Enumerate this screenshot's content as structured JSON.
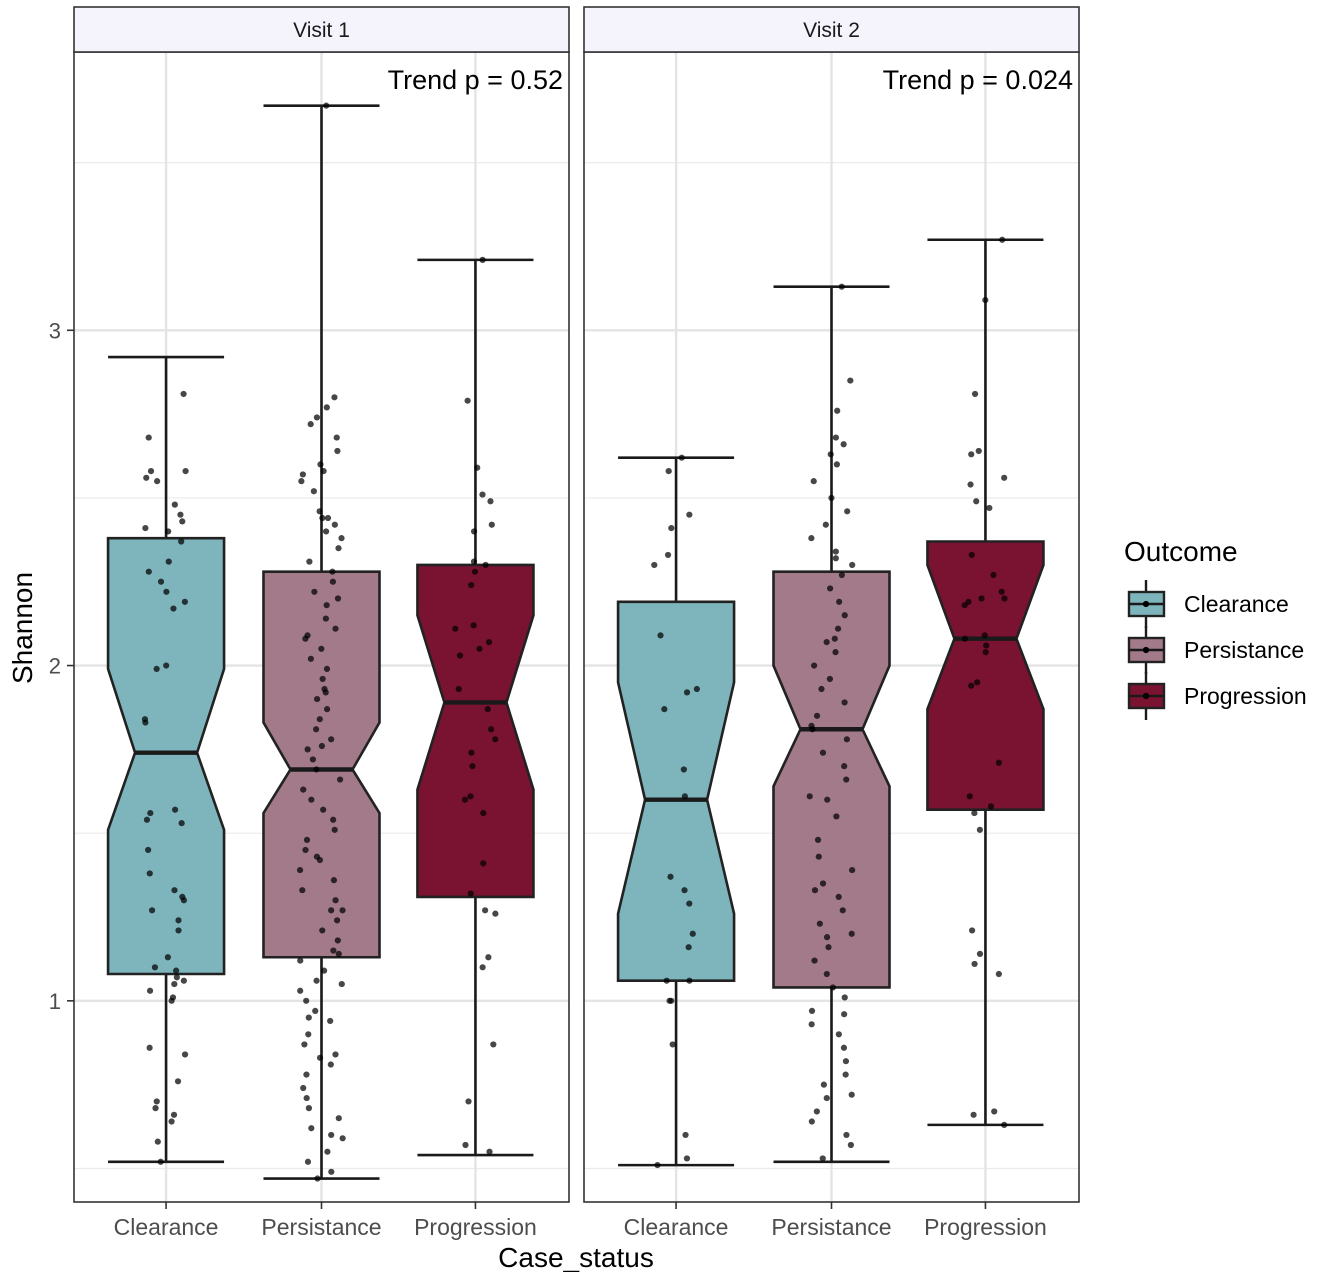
{
  "chart_data": {
    "type": "boxplot",
    "notched": true,
    "facet_by": "Visit",
    "xlabel": "Case_status",
    "ylabel": "Shannon",
    "y_ticks": [
      1,
      2,
      3
    ],
    "ylim": [
      0.4,
      3.83
    ],
    "grid": true,
    "legend": {
      "title": "Outcome",
      "position": "right",
      "entries": [
        {
          "name": "Clearance",
          "color": "#7eb5bc"
        },
        {
          "name": "Persistance",
          "color": "#a27a8a"
        },
        {
          "name": "Progression",
          "color": "#7a1232"
        }
      ]
    },
    "categories": [
      "Clearance",
      "Persistance",
      "Progression"
    ],
    "facets": [
      {
        "label": "Visit 1",
        "annotation": "Trend p = 0.52",
        "boxes": [
          {
            "category": "Clearance",
            "whisker_low": 0.52,
            "q1": 1.08,
            "median": 1.74,
            "q3": 2.38,
            "whisker_high": 2.92,
            "notch_low": 1.51,
            "notch_high": 1.99,
            "points": [
              2.81,
              2.68,
              2.58,
              2.55,
              2.56,
              2.48,
              2.45,
              2.41,
              2.4,
              2.37,
              2.31,
              2.28,
              2.25,
              2.22,
              2.19,
              2.17,
              2.0,
              1.99,
              1.84,
              1.83,
              1.57,
              1.56,
              1.54,
              1.53,
              1.45,
              1.38,
              1.33,
              1.31,
              1.27,
              1.24,
              1.21,
              1.13,
              1.1,
              1.09,
              1.07,
              1.05,
              1.03,
              1.01,
              1.0,
              0.86,
              0.84,
              0.76,
              0.7,
              0.68,
              0.66,
              0.64,
              0.58,
              0.52,
              2.58,
              2.43,
              1.3,
              1.06
            ]
          },
          {
            "category": "Persistance",
            "whisker_low": 0.47,
            "q1": 1.13,
            "median": 1.69,
            "q3": 2.28,
            "whisker_high": 3.67,
            "notch_low": 1.56,
            "notch_high": 1.83,
            "points": [
              3.67,
              2.8,
              2.77,
              2.74,
              2.72,
              2.68,
              2.64,
              2.6,
              2.57,
              2.55,
              2.52,
              2.46,
              2.44,
              2.42,
              2.4,
              2.38,
              2.35,
              2.31,
              2.28,
              2.25,
              2.22,
              2.18,
              2.14,
              2.11,
              2.08,
              2.05,
              2.02,
              1.99,
              1.96,
              1.93,
              1.9,
              1.87,
              1.84,
              1.81,
              1.78,
              1.75,
              1.72,
              1.69,
              1.66,
              1.63,
              1.6,
              1.57,
              1.54,
              1.51,
              1.48,
              1.45,
              1.42,
              1.39,
              1.36,
              1.33,
              1.3,
              1.27,
              1.24,
              1.21,
              1.18,
              1.15,
              1.12,
              1.09,
              1.06,
              1.03,
              1.0,
              0.97,
              0.94,
              0.9,
              0.87,
              0.84,
              0.81,
              0.78,
              0.74,
              0.71,
              0.68,
              0.65,
              0.62,
              0.59,
              0.55,
              0.52,
              0.49,
              0.47,
              2.58,
              2.44,
              2.2,
              2.09,
              1.92,
              1.76,
              1.43,
              1.27,
              1.14,
              1.05,
              0.95,
              0.83,
              0.6
            ]
          },
          {
            "category": "Progression",
            "whisker_low": 0.54,
            "q1": 1.31,
            "median": 1.89,
            "q3": 2.3,
            "whisker_high": 3.21,
            "notch_low": 1.63,
            "notch_high": 2.15,
            "points": [
              3.21,
              2.79,
              2.59,
              2.51,
              2.49,
              2.42,
              2.4,
              2.31,
              2.3,
              2.28,
              2.24,
              2.12,
              2.11,
              2.07,
              2.05,
              2.03,
              1.93,
              1.87,
              1.81,
              1.78,
              1.74,
              1.7,
              1.61,
              1.6,
              1.56,
              1.41,
              1.32,
              1.27,
              1.26,
              1.13,
              1.1,
              0.87,
              0.7,
              0.57,
              0.55
            ]
          }
        ]
      },
      {
        "label": "Visit 2",
        "annotation": "Trend p = 0.024",
        "boxes": [
          {
            "category": "Clearance",
            "whisker_low": 0.51,
            "q1": 1.06,
            "median": 1.6,
            "q3": 2.19,
            "whisker_high": 2.62,
            "notch_low": 1.26,
            "notch_high": 1.95,
            "points": [
              2.62,
              2.58,
              2.45,
              2.41,
              2.33,
              2.3,
              2.09,
              1.93,
              1.92,
              1.87,
              1.69,
              1.61,
              1.37,
              1.33,
              1.29,
              1.2,
              1.16,
              1.06,
              1.06,
              1.0,
              1.0,
              0.87,
              0.6,
              0.53,
              0.51
            ]
          },
          {
            "category": "Persistance",
            "whisker_low": 0.52,
            "q1": 1.04,
            "median": 1.81,
            "q3": 2.28,
            "whisker_high": 3.13,
            "notch_low": 1.64,
            "notch_high": 2.0,
            "points": [
              3.13,
              2.85,
              2.76,
              2.68,
              2.66,
              2.63,
              2.6,
              2.55,
              2.5,
              2.46,
              2.42,
              2.38,
              2.34,
              2.3,
              2.27,
              2.23,
              2.19,
              2.15,
              2.11,
              2.08,
              2.04,
              2.0,
              1.96,
              1.93,
              1.89,
              1.85,
              1.82,
              1.78,
              1.74,
              1.7,
              1.66,
              1.61,
              1.55,
              1.48,
              1.43,
              1.39,
              1.35,
              1.31,
              1.27,
              1.23,
              1.2,
              1.16,
              1.12,
              1.08,
              1.04,
              1.01,
              0.97,
              0.93,
              0.9,
              0.86,
              0.82,
              0.78,
              0.75,
              0.71,
              0.67,
              0.64,
              0.6,
              0.57,
              0.53,
              2.32,
              2.07,
              1.81,
              1.6,
              1.33,
              1.19,
              0.96,
              0.72
            ]
          },
          {
            "category": "Progression",
            "whisker_low": 0.63,
            "q1": 1.57,
            "median": 2.08,
            "q3": 2.37,
            "whisker_high": 3.27,
            "notch_low": 1.87,
            "notch_high": 2.3,
            "points": [
              3.27,
              3.09,
              2.81,
              2.64,
              2.63,
              2.56,
              2.54,
              2.49,
              2.47,
              2.33,
              2.27,
              2.22,
              2.2,
              2.2,
              2.19,
              2.18,
              2.09,
              2.08,
              2.06,
              2.04,
              1.95,
              1.94,
              1.71,
              1.61,
              1.58,
              1.56,
              1.51,
              1.21,
              1.14,
              1.11,
              1.08,
              0.67,
              0.66,
              0.63
            ]
          }
        ]
      }
    ]
  }
}
